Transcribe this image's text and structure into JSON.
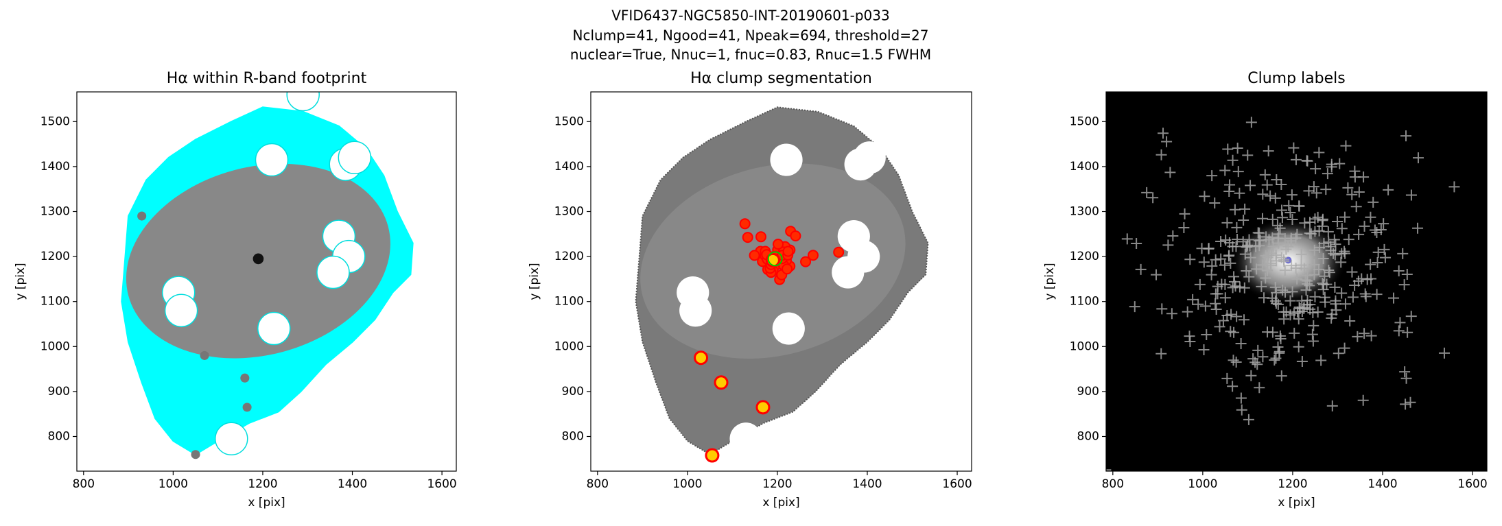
{
  "figure": {
    "title_lines": [
      "VFID6437-NGC5850-INT-20190601-p033",
      "Nclump=41, Ngood=41, Npeak=694, threshold=27",
      "nuclear=True, Nnuc=1, fnuc=0.83, Rnuc=1.5 FWHM"
    ]
  },
  "chart_data": [
    {
      "type": "image",
      "title": "Hα within R-band footprint",
      "xlabel": "x [pix]",
      "ylabel": "y [pix]",
      "xlim": [
        785,
        1632
      ],
      "ylim": [
        723,
        1566
      ],
      "xticks": [
        800,
        1000,
        1200,
        1400,
        1600
      ],
      "yticks": [
        800,
        900,
        1000,
        1100,
        1200,
        1300,
        1400,
        1500
      ]
    },
    {
      "type": "image",
      "title": "Hα clump segmentation",
      "xlabel": "x [pix]",
      "ylabel": "y [pix]",
      "xlim": [
        785,
        1632
      ],
      "ylim": [
        723,
        1566
      ],
      "xticks": [
        800,
        1000,
        1200,
        1400,
        1600
      ],
      "yticks": [
        800,
        900,
        1000,
        1100,
        1200,
        1300,
        1400,
        1500
      ]
    },
    {
      "type": "image",
      "title": "Clump labels",
      "xlabel": "x [pix]",
      "ylabel": "y [pix]",
      "xlim": [
        785,
        1632
      ],
      "ylim": [
        723,
        1566
      ],
      "xticks": [
        800,
        1000,
        1200,
        1400,
        1600
      ],
      "yticks": [
        800,
        900,
        1000,
        1100,
        1200,
        1300,
        1400,
        1500
      ]
    }
  ]
}
